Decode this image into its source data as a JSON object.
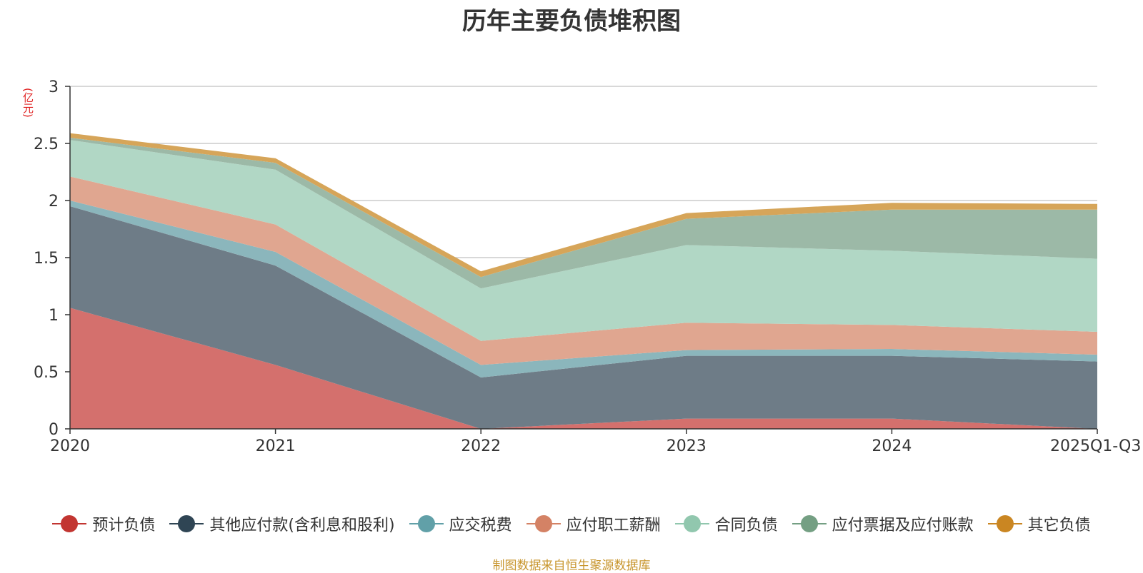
{
  "chart_data": {
    "type": "area",
    "stacked": true,
    "title": "历年主要负债堆积图",
    "ylabel": "(亿元)",
    "xlabel": "",
    "categories": [
      "2020",
      "2021",
      "2022",
      "2023",
      "2024",
      "2025Q1-Q3"
    ],
    "ylim": [
      0,
      3
    ],
    "yticks": [
      "0",
      "0.5",
      "1",
      "1.5",
      "2",
      "2.5",
      "3"
    ],
    "grid": true,
    "legend_position": "bottom",
    "series": [
      {
        "name": "预计负债",
        "color": "#c23531",
        "fill": "#d4706d",
        "values": [
          1.06,
          0.56,
          0.0,
          0.09,
          0.09,
          0.0
        ]
      },
      {
        "name": "其他应付款(含利息和股利)",
        "color": "#2f4554",
        "fill": "#6e7c87",
        "values": [
          0.89,
          0.87,
          0.45,
          0.55,
          0.55,
          0.59
        ]
      },
      {
        "name": "应交税费",
        "color": "#61a0a8",
        "fill": "#8bb6bc",
        "values": [
          0.05,
          0.12,
          0.11,
          0.05,
          0.06,
          0.06
        ]
      },
      {
        "name": "应付职工薪酬",
        "color": "#d48265",
        "fill": "#e0a690",
        "values": [
          0.21,
          0.24,
          0.21,
          0.24,
          0.21,
          0.2
        ]
      },
      {
        "name": "合同负债",
        "color": "#91c7ae",
        "fill": "#b1d7c5",
        "values": [
          0.32,
          0.48,
          0.46,
          0.68,
          0.65,
          0.64
        ]
      },
      {
        "name": "应付票据及应付账款",
        "color": "#749f83",
        "fill": "#9cb9a7",
        "values": [
          0.02,
          0.06,
          0.1,
          0.23,
          0.36,
          0.43
        ]
      },
      {
        "name": "其它负债",
        "color": "#ca8622",
        "fill": "#d6a559",
        "values": [
          0.04,
          0.04,
          0.05,
          0.05,
          0.06,
          0.05
        ]
      }
    ]
  },
  "source_note": "制图数据来自恒生聚源数据库"
}
